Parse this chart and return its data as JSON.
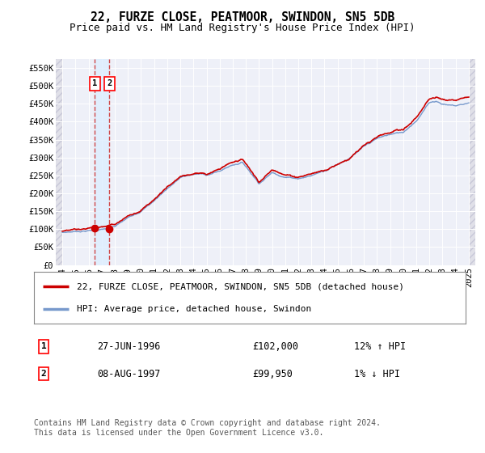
{
  "title": "22, FURZE CLOSE, PEATMOOR, SWINDON, SN5 5DB",
  "subtitle": "Price paid vs. HM Land Registry's House Price Index (HPI)",
  "background_color": "#ffffff",
  "plot_bg_color": "#eef0f8",
  "grid_color": "#ffffff",
  "ylim": [
    0,
    575000
  ],
  "yticks": [
    0,
    50000,
    100000,
    150000,
    200000,
    250000,
    300000,
    350000,
    400000,
    450000,
    500000,
    550000
  ],
  "ytick_labels": [
    "£0",
    "£50K",
    "£100K",
    "£150K",
    "£200K",
    "£250K",
    "£300K",
    "£350K",
    "£400K",
    "£450K",
    "£500K",
    "£550K"
  ],
  "xlim_start": 1993.5,
  "xlim_end": 2025.5,
  "sale1_date": 1996.49,
  "sale1_price": 102000,
  "sale2_date": 1997.6,
  "sale2_price": 99950,
  "sale1_text": "27-JUN-1996",
  "sale1_amount": "£102,000",
  "sale1_hpi": "12% ↑ HPI",
  "sale2_text": "08-AUG-1997",
  "sale2_amount": "£99,950",
  "sale2_hpi": "1% ↓ HPI",
  "line1_color": "#cc0000",
  "line2_color": "#7799cc",
  "marker_color": "#cc0000",
  "dashed_color": "#cc3333",
  "span_color": "#ddeeff",
  "legend1_label": "22, FURZE CLOSE, PEATMOOR, SWINDON, SN5 5DB (detached house)",
  "legend2_label": "HPI: Average price, detached house, Swindon",
  "footer": "Contains HM Land Registry data © Crown copyright and database right 2024.\nThis data is licensed under the Open Government Licence v3.0.",
  "title_fontsize": 10.5,
  "subtitle_fontsize": 9,
  "tick_fontsize": 7.5,
  "legend_fontsize": 8,
  "table_fontsize": 8.5,
  "footer_fontsize": 7
}
